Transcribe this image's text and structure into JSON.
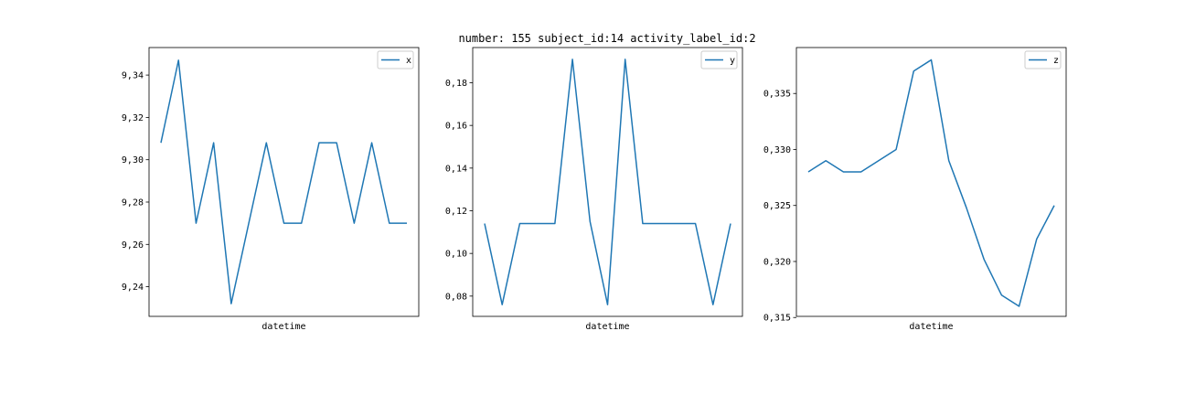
{
  "title": "number: 155 subject_id:14 activity_label_id:2",
  "chart_data": [
    {
      "type": "line",
      "xlabel": "datetime",
      "legend": "top-right",
      "grid": false,
      "ylim": [
        9.226,
        9.353
      ],
      "yticks": [
        9.24,
        9.26,
        9.28,
        9.3,
        9.32,
        9.34
      ],
      "ytick_labels": [
        "9,24",
        "9,26",
        "9,28",
        "9,30",
        "9,32",
        "9,34"
      ],
      "series": [
        {
          "name": "x",
          "color": "#1f77b4",
          "values": [
            9.308,
            9.347,
            9.27,
            9.308,
            9.232,
            9.27,
            9.308,
            9.27,
            9.27,
            9.308,
            9.308,
            9.27,
            9.308,
            9.27,
            9.27
          ]
        }
      ]
    },
    {
      "type": "line",
      "xlabel": "datetime",
      "legend": "top-right",
      "grid": false,
      "ylim": [
        0.0705,
        0.1965
      ],
      "yticks": [
        0.08,
        0.1,
        0.12,
        0.14,
        0.16,
        0.18
      ],
      "ytick_labels": [
        "0,08",
        "0,10",
        "0,12",
        "0,14",
        "0,16",
        "0,18"
      ],
      "series": [
        {
          "name": "y",
          "color": "#1f77b4",
          "values": [
            0.114,
            0.076,
            0.114,
            0.114,
            0.114,
            0.191,
            0.115,
            0.076,
            0.191,
            0.114,
            0.114,
            0.114,
            0.114,
            0.076,
            0.114
          ]
        }
      ]
    },
    {
      "type": "line",
      "xlabel": "datetime",
      "legend": "top-right",
      "grid": false,
      "ylim": [
        0.3151,
        0.3391
      ],
      "yticks": [
        0.315,
        0.32,
        0.325,
        0.33,
        0.335
      ],
      "ytick_labels": [
        "0,315",
        "0,320",
        "0,325",
        "0,330",
        "0,335"
      ],
      "series": [
        {
          "name": "z",
          "color": "#1f77b4",
          "values": [
            0.328,
            0.329,
            0.328,
            0.328,
            0.329,
            0.33,
            0.337,
            0.338,
            0.329,
            0.3248,
            0.3202,
            0.317,
            0.316,
            0.322,
            0.325
          ]
        }
      ]
    }
  ]
}
